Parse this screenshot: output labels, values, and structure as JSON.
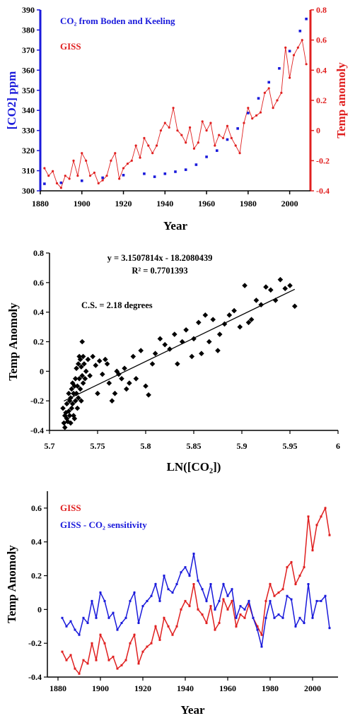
{
  "chart_data": [
    {
      "type": "line",
      "xlabel": "Year",
      "ylabel_left": "[CO2] ppm",
      "ylabel_right": "Temp anomoly",
      "xlim": [
        1880,
        2010
      ],
      "xticks": [
        "1880",
        "1900",
        "1920",
        "1940",
        "1960",
        "1980",
        "2000"
      ],
      "ylim_left": [
        300,
        390
      ],
      "yticks_left": [
        "300",
        "310",
        "320",
        "330",
        "340",
        "350",
        "360",
        "370",
        "380",
        "390"
      ],
      "ylim_right": [
        -0.4,
        0.8
      ],
      "yticks_right": [
        "-0.4",
        "-0.2",
        "0",
        "0.2",
        "0.4",
        "0.6",
        "0.8"
      ],
      "legend": [
        {
          "label": "CO₂ from Boden and Keeling",
          "color": "#1a1adb"
        },
        {
          "label": "GISS",
          "color": "#e02020"
        }
      ],
      "series": [
        {
          "name": "CO₂ from Boden and Keeling",
          "axis": "left",
          "color": "#1a1adb",
          "x": [
            1882,
            1890,
            1900,
            1910,
            1920,
            1930,
            1935,
            1940,
            1945,
            1950,
            1955,
            1960,
            1965,
            1970,
            1975,
            1980,
            1985,
            1990,
            1995,
            2000,
            2005,
            2008
          ],
          "y": [
            303.5,
            304,
            305,
            306.5,
            307.8,
            308.5,
            307,
            308.5,
            309.5,
            310.5,
            313,
            316.9,
            320,
            325.5,
            331,
            338.7,
            346,
            354,
            360.9,
            369.5,
            379.5,
            385.5
          ]
        },
        {
          "name": "GISS",
          "axis": "right",
          "color": "#e02020",
          "x": [
            1882,
            1884,
            1886,
            1888,
            1890,
            1892,
            1894,
            1896,
            1898,
            1900,
            1902,
            1904,
            1906,
            1908,
            1910,
            1912,
            1914,
            1916,
            1918,
            1920,
            1922,
            1924,
            1926,
            1928,
            1930,
            1932,
            1934,
            1936,
            1938,
            1940,
            1942,
            1944,
            1946,
            1948,
            1950,
            1952,
            1954,
            1956,
            1958,
            1960,
            1962,
            1964,
            1966,
            1968,
            1970,
            1972,
            1974,
            1976,
            1978,
            1980,
            1982,
            1984,
            1986,
            1988,
            1990,
            1992,
            1994,
            1996,
            1998,
            2000,
            2002,
            2004,
            2006,
            2008
          ],
          "y": [
            -0.25,
            -0.3,
            -0.27,
            -0.35,
            -0.38,
            -0.3,
            -0.32,
            -0.2,
            -0.3,
            -0.15,
            -0.2,
            -0.3,
            -0.28,
            -0.35,
            -0.33,
            -0.3,
            -0.2,
            -0.15,
            -0.32,
            -0.25,
            -0.22,
            -0.2,
            -0.1,
            -0.18,
            -0.05,
            -0.1,
            -0.15,
            -0.1,
            0,
            0.05,
            0.02,
            0.15,
            0,
            -0.03,
            -0.08,
            0.02,
            -0.12,
            -0.08,
            0.06,
            0,
            0.05,
            -0.1,
            -0.03,
            -0.05,
            0.03,
            -0.05,
            -0.1,
            -0.15,
            0.05,
            0.15,
            0.08,
            0.1,
            0.12,
            0.25,
            0.28,
            0.15,
            0.2,
            0.25,
            0.55,
            0.35,
            0.5,
            0.55,
            0.6,
            0.44
          ]
        }
      ]
    },
    {
      "type": "scatter",
      "xlabel": "LN([CO₂])",
      "ylabel": "Temp Anomoly",
      "xlim": [
        5.7,
        6
      ],
      "xticks": [
        "5.7",
        "5.75",
        "5.8",
        "5.85",
        "5.9",
        "5.95",
        "6"
      ],
      "ylim": [
        -0.4,
        0.8
      ],
      "yticks": [
        "-0.4",
        "-0.2",
        "0",
        "0.2",
        "0.4",
        "0.6",
        "0.8"
      ],
      "annotations": [
        "y = 3.1507814x - 18.2080439",
        "R² = 0.7701393",
        "C.S. = 2.18 degrees"
      ],
      "trendline": {
        "slope": 3.1507814,
        "intercept": -18.2080439,
        "x_range": [
          5.715,
          5.955
        ]
      },
      "points": [
        [
          5.714,
          -0.25
        ],
        [
          5.715,
          -0.35
        ],
        [
          5.716,
          -0.3
        ],
        [
          5.716,
          -0.38
        ],
        [
          5.717,
          -0.28
        ],
        [
          5.718,
          -0.32
        ],
        [
          5.718,
          -0.22
        ],
        [
          5.719,
          -0.34
        ],
        [
          5.72,
          -0.27
        ],
        [
          5.72,
          -0.15
        ],
        [
          5.721,
          -0.3
        ],
        [
          5.721,
          -0.2
        ],
        [
          5.722,
          -0.18
        ],
        [
          5.722,
          -0.35
        ],
        [
          5.723,
          -0.12
        ],
        [
          5.723,
          -0.25
        ],
        [
          5.724,
          -0.22
        ],
        [
          5.724,
          -0.08
        ],
        [
          5.725,
          -0.3
        ],
        [
          5.725,
          -0.15
        ],
        [
          5.726,
          -0.1
        ],
        [
          5.726,
          -0.32
        ],
        [
          5.727,
          -0.05
        ],
        [
          5.727,
          -0.2
        ],
        [
          5.728,
          -0.15
        ],
        [
          5.728,
          0.02
        ],
        [
          5.729,
          -0.1
        ],
        [
          5.729,
          -0.25
        ],
        [
          5.73,
          0.05
        ],
        [
          5.73,
          -0.18
        ],
        [
          5.731,
          0.1
        ],
        [
          5.731,
          -0.05
        ],
        [
          5.732,
          0.08
        ],
        [
          5.732,
          -0.12
        ],
        [
          5.733,
          0.03
        ],
        [
          5.733,
          -0.2
        ],
        [
          5.734,
          0.2
        ],
        [
          5.734,
          -0.03
        ],
        [
          5.735,
          0.1
        ],
        [
          5.735,
          -0.08
        ],
        [
          5.736,
          0.05
        ],
        [
          5.737,
          -0.05
        ],
        [
          5.738,
          0.0
        ],
        [
          5.74,
          0.08
        ],
        [
          5.742,
          -0.03
        ],
        [
          5.745,
          0.1
        ],
        [
          5.748,
          0.04
        ],
        [
          5.75,
          -0.15
        ],
        [
          5.752,
          0.07
        ],
        [
          5.755,
          -0.02
        ],
        [
          5.758,
          0.08
        ],
        [
          5.76,
          0.05
        ],
        [
          5.762,
          -0.08
        ],
        [
          5.765,
          -0.2
        ],
        [
          5.768,
          -0.15
        ],
        [
          5.77,
          0.0
        ],
        [
          5.772,
          -0.02
        ],
        [
          5.775,
          -0.05
        ],
        [
          5.778,
          0.02
        ],
        [
          5.78,
          -0.12
        ],
        [
          5.783,
          -0.08
        ],
        [
          5.787,
          0.1
        ],
        [
          5.79,
          -0.05
        ],
        [
          5.795,
          0.14
        ],
        [
          5.8,
          -0.1
        ],
        [
          5.803,
          -0.16
        ],
        [
          5.807,
          0.05
        ],
        [
          5.81,
          0.12
        ],
        [
          5.815,
          0.22
        ],
        [
          5.82,
          0.18
        ],
        [
          5.825,
          0.15
        ],
        [
          5.83,
          0.25
        ],
        [
          5.833,
          0.05
        ],
        [
          5.838,
          0.2
        ],
        [
          5.842,
          0.28
        ],
        [
          5.848,
          0.1
        ],
        [
          5.85,
          0.22
        ],
        [
          5.855,
          0.33
        ],
        [
          5.858,
          0.12
        ],
        [
          5.862,
          0.38
        ],
        [
          5.866,
          0.2
        ],
        [
          5.87,
          0.35
        ],
        [
          5.875,
          0.14
        ],
        [
          5.877,
          0.25
        ],
        [
          5.882,
          0.32
        ],
        [
          5.887,
          0.38
        ],
        [
          5.892,
          0.41
        ],
        [
          5.898,
          0.3
        ],
        [
          5.903,
          0.58
        ],
        [
          5.907,
          0.33
        ],
        [
          5.91,
          0.35
        ],
        [
          5.915,
          0.48
        ],
        [
          5.92,
          0.45
        ],
        [
          5.925,
          0.57
        ],
        [
          5.93,
          0.55
        ],
        [
          5.935,
          0.48
        ],
        [
          5.94,
          0.62
        ],
        [
          5.945,
          0.56
        ],
        [
          5.95,
          0.58
        ],
        [
          5.955,
          0.44
        ]
      ]
    },
    {
      "type": "line",
      "xlabel": "Year",
      "ylabel": "Temp Anomoly",
      "xlim": [
        1875,
        2012
      ],
      "xticks": [
        "1880",
        "1900",
        "1920",
        "1940",
        "1960",
        "1980",
        "2000"
      ],
      "ylim": [
        -0.4,
        0.7
      ],
      "yticks": [
        "-0.4",
        "-0.2",
        "0",
        "0.2",
        "0.4",
        "0.6"
      ],
      "legend": [
        {
          "label": "GISS",
          "color": "#e02020"
        },
        {
          "label": "GISS - CO₂ sensitivity",
          "color": "#1a1adb"
        }
      ],
      "series": [
        {
          "name": "GISS",
          "color": "#e02020",
          "x": [
            1882,
            1884,
            1886,
            1888,
            1890,
            1892,
            1894,
            1896,
            1898,
            1900,
            1902,
            1904,
            1906,
            1908,
            1910,
            1912,
            1914,
            1916,
            1918,
            1920,
            1922,
            1924,
            1926,
            1928,
            1930,
            1932,
            1934,
            1936,
            1938,
            1940,
            1942,
            1944,
            1946,
            1948,
            1950,
            1952,
            1954,
            1956,
            1958,
            1960,
            1962,
            1964,
            1966,
            1968,
            1970,
            1972,
            1974,
            1976,
            1978,
            1980,
            1982,
            1984,
            1986,
            1988,
            1990,
            1992,
            1994,
            1996,
            1998,
            2000,
            2002,
            2004,
            2006,
            2008
          ],
          "y": [
            -0.25,
            -0.3,
            -0.27,
            -0.35,
            -0.38,
            -0.3,
            -0.32,
            -0.2,
            -0.3,
            -0.15,
            -0.2,
            -0.3,
            -0.28,
            -0.35,
            -0.33,
            -0.3,
            -0.2,
            -0.15,
            -0.32,
            -0.25,
            -0.22,
            -0.2,
            -0.1,
            -0.18,
            -0.05,
            -0.1,
            -0.15,
            -0.1,
            0,
            0.05,
            0.02,
            0.15,
            0,
            -0.03,
            -0.08,
            0.02,
            -0.12,
            -0.08,
            0.06,
            0,
            0.05,
            -0.1,
            -0.03,
            -0.05,
            0.03,
            -0.05,
            -0.1,
            -0.15,
            0.05,
            0.15,
            0.08,
            0.1,
            0.12,
            0.25,
            0.28,
            0.15,
            0.2,
            0.25,
            0.55,
            0.35,
            0.5,
            0.55,
            0.6,
            0.44
          ]
        },
        {
          "name": "GISS - CO₂ sensitivity",
          "color": "#1a1adb",
          "x": [
            1882,
            1884,
            1886,
            1888,
            1890,
            1892,
            1894,
            1896,
            1898,
            1900,
            1902,
            1904,
            1906,
            1908,
            1910,
            1912,
            1914,
            1916,
            1918,
            1920,
            1922,
            1924,
            1926,
            1928,
            1930,
            1932,
            1934,
            1936,
            1938,
            1940,
            1942,
            1944,
            1946,
            1948,
            1950,
            1952,
            1954,
            1956,
            1958,
            1960,
            1962,
            1964,
            1966,
            1968,
            1970,
            1972,
            1974,
            1976,
            1978,
            1980,
            1982,
            1984,
            1986,
            1988,
            1990,
            1992,
            1994,
            1996,
            1998,
            2000,
            2002,
            2004,
            2006,
            2008
          ],
          "y": [
            -0.05,
            -0.1,
            -0.07,
            -0.12,
            -0.15,
            -0.05,
            -0.08,
            0.05,
            -0.05,
            0.1,
            0.05,
            -0.05,
            -0.02,
            -0.12,
            -0.08,
            -0.05,
            0.05,
            0.1,
            -0.08,
            0.02,
            0.05,
            0.08,
            0.15,
            0.05,
            0.2,
            0.12,
            0.1,
            0.15,
            0.22,
            0.25,
            0.2,
            0.33,
            0.17,
            0.12,
            0.05,
            0.15,
            0.0,
            0.05,
            0.15,
            0.08,
            0.12,
            -0.05,
            0.02,
            0.0,
            0.05,
            -0.05,
            -0.12,
            -0.22,
            -0.05,
            0.05,
            -0.05,
            -0.03,
            -0.05,
            0.08,
            0.06,
            -0.1,
            -0.05,
            -0.08,
            0.15,
            -0.05,
            0.05,
            0.05,
            0.08,
            -0.11
          ]
        }
      ]
    }
  ]
}
